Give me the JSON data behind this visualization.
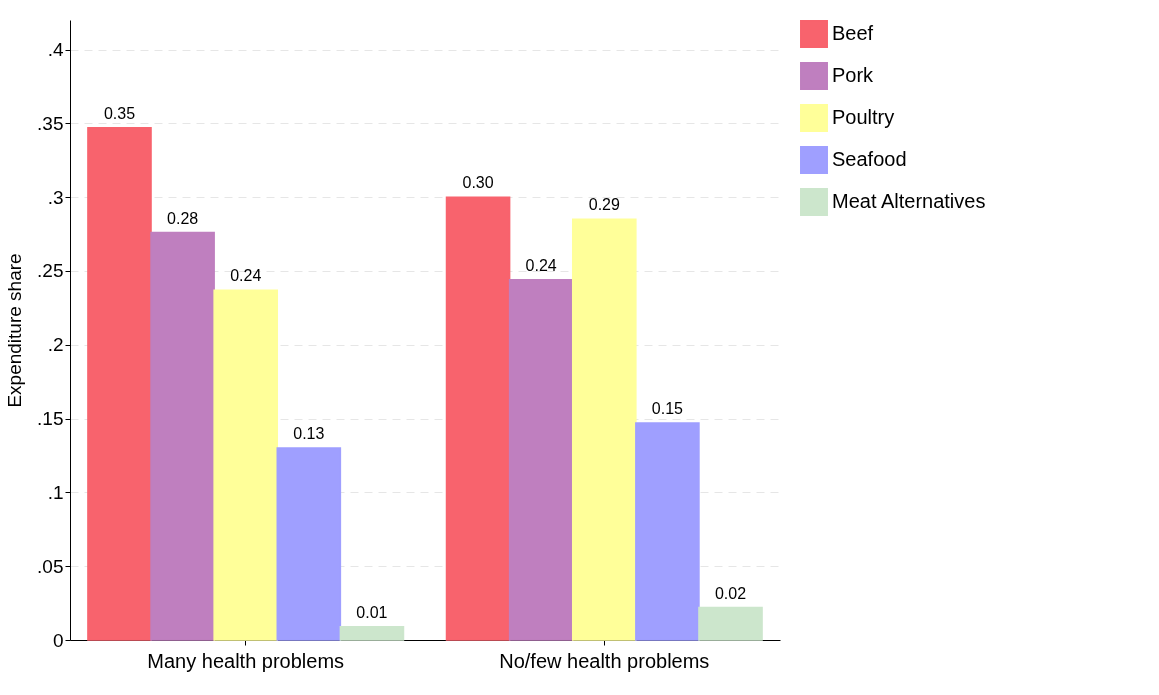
{
  "chart_data": {
    "type": "bar",
    "ylabel": "Expenditure share",
    "categories": [
      "Many health problems",
      "No/few health problems"
    ],
    "series": [
      {
        "name": "Beef",
        "color": "#f8636d",
        "values": [
          0.347,
          0.3
        ],
        "value_labels": [
          "0.35",
          "0.30"
        ]
      },
      {
        "name": "Pork",
        "color": "#bf7fbf",
        "values": [
          0.276,
          0.244
        ],
        "value_labels": [
          "0.28",
          "0.24"
        ]
      },
      {
        "name": "Poultry",
        "color": "#ffff99",
        "values": [
          0.237,
          0.285
        ],
        "value_labels": [
          "0.24",
          "0.29"
        ]
      },
      {
        "name": "Seafood",
        "color": "#9f9fff",
        "values": [
          0.13,
          0.147
        ],
        "value_labels": [
          "0.13",
          "0.15"
        ]
      },
      {
        "name": "Meat Alternatives",
        "color": "#cce6cc",
        "values": [
          0.009,
          0.022
        ],
        "value_labels": [
          "0.01",
          "0.02"
        ]
      }
    ],
    "ylim": [
      0,
      0.42
    ],
    "yticks": [
      0,
      {
        "value": 0.05,
        "label": ".05"
      },
      {
        "value": 0.1,
        "label": ".1"
      },
      {
        "value": 0.15,
        "label": ".15"
      },
      {
        "value": 0.2,
        "label": ".2"
      },
      {
        "value": 0.25,
        "label": ".25"
      },
      {
        "value": 0.3,
        "label": ".3"
      },
      {
        "value": 0.35,
        "label": ".35"
      },
      {
        "value": 0.4,
        "label": ".4"
      }
    ],
    "grid": "y",
    "legend": "right"
  }
}
